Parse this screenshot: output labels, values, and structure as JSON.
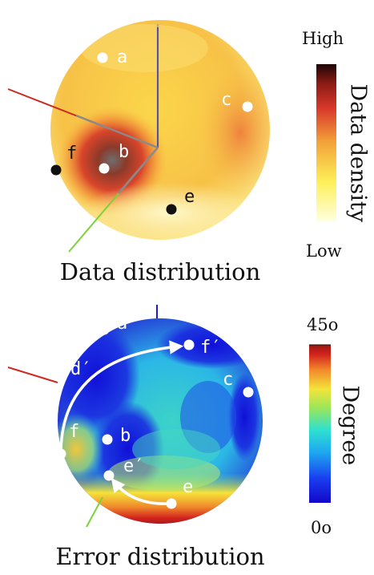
{
  "top_panel": {
    "caption": "Data distribution",
    "colorbar": {
      "title": "Data density",
      "max_label": "High",
      "min_label": "Low"
    },
    "points": [
      {
        "label": "a",
        "marker": "white"
      },
      {
        "label": "b",
        "marker": "white"
      },
      {
        "label": "c",
        "marker": "white"
      },
      {
        "label": "e",
        "marker": "black"
      },
      {
        "label": "f",
        "marker": "black"
      }
    ]
  },
  "bottom_panel": {
    "caption": "Error distribution",
    "colorbar": {
      "title": "Degree",
      "max_label": "45o",
      "min_label": "0o"
    },
    "points": [
      {
        "label": "a"
      },
      {
        "label": "b"
      },
      {
        "label": "c"
      },
      {
        "label": "e"
      },
      {
        "label": "f"
      },
      {
        "label": "d′"
      },
      {
        "label": "e′"
      },
      {
        "label": "f′"
      }
    ]
  },
  "colors": {
    "axis_x": "#cc2a22",
    "axis_y": "#7fd13b",
    "axis_z": "#1c1ccc",
    "marker_white": "#ffffff",
    "marker_black": "#111111"
  }
}
